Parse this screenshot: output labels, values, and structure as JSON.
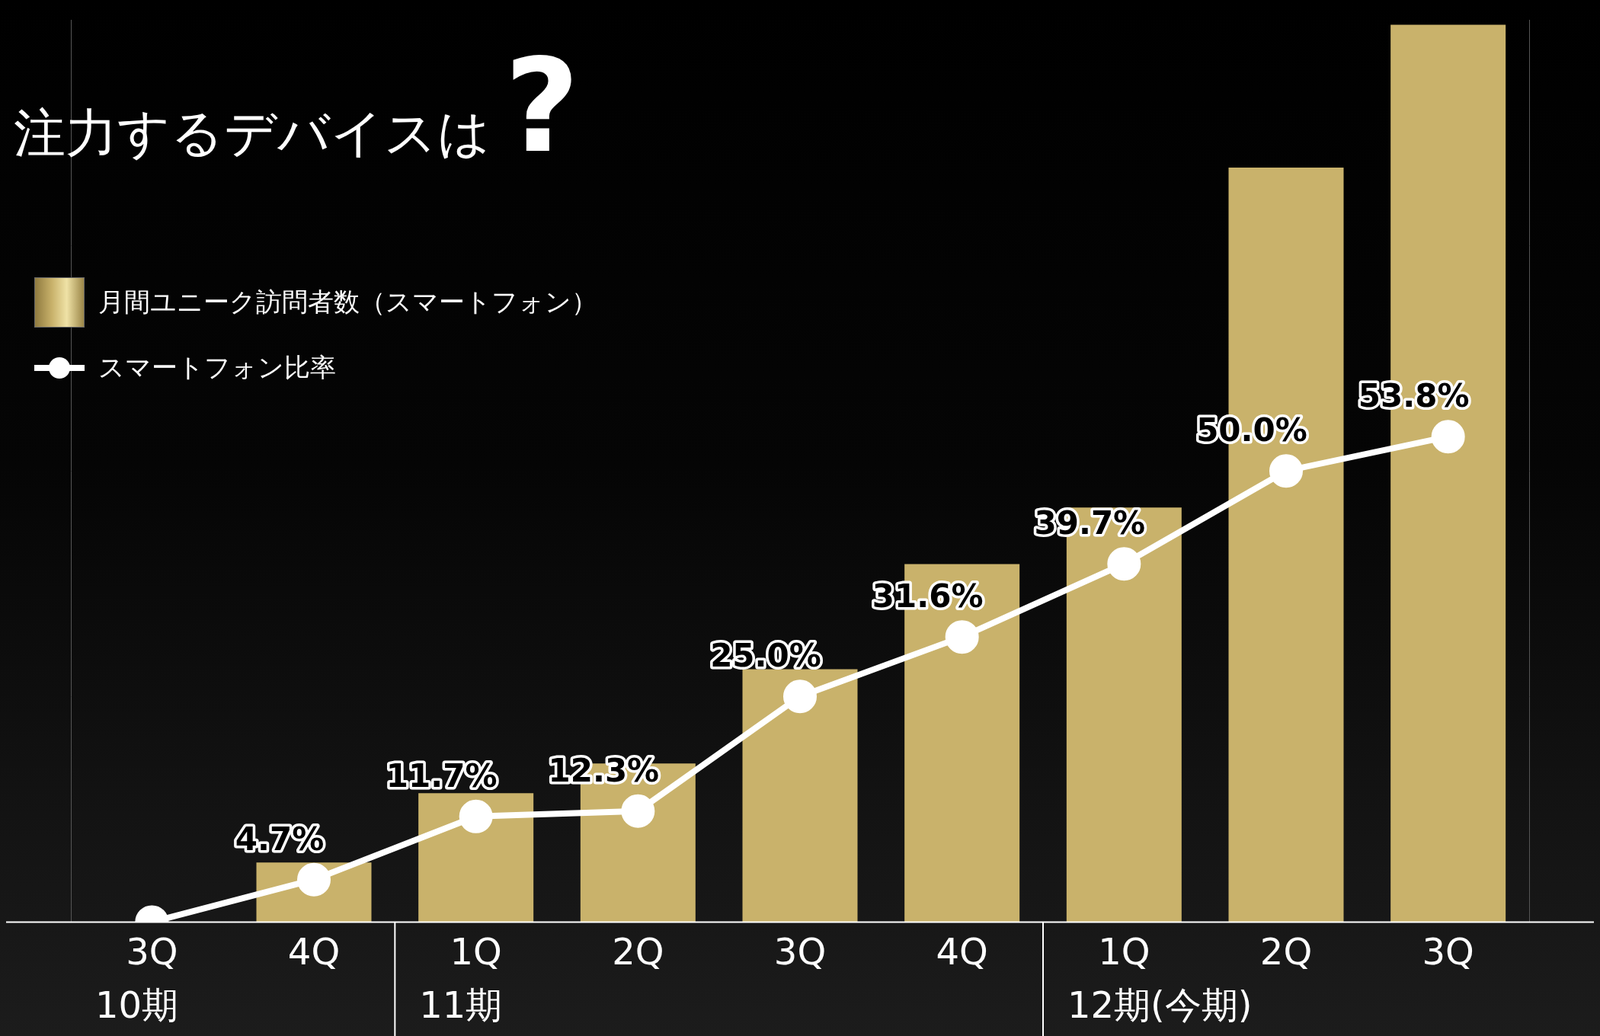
{
  "chart_data": {
    "type": "bar",
    "title": "注力するデバイスは?",
    "categories": [
      "3Q",
      "4Q",
      "1Q",
      "2Q",
      "3Q",
      "4Q",
      "1Q",
      "2Q",
      "3Q"
    ],
    "groups": [
      "10期",
      "10期",
      "11期",
      "11期",
      "11期",
      "11期",
      "12期(今期)",
      "12期(今期)",
      "12期(今期)"
    ],
    "series": [
      {
        "name": "月間ユニーク訪問者数（スマートフォン）",
        "type": "bar",
        "color": "#c9b26b",
        "values": [
          null,
          60,
          130,
          160,
          255,
          361,
          418,
          761,
          905
        ]
      },
      {
        "name": "スマートフォン比率",
        "type": "line",
        "axis": "y2",
        "color": "#ffffff",
        "marker": "circle",
        "data_labels": true,
        "values": [
          0,
          4.7,
          11.7,
          12.3,
          25.0,
          31.6,
          39.7,
          50.0,
          53.8
        ],
        "value_labels": [
          null,
          "4.7%",
          "11.7%",
          "12.3%",
          "25.0%",
          "31.6%",
          "39.7%",
          "50.0%",
          "53.8%"
        ]
      }
    ],
    "ylim": [
      0,
      910
    ],
    "yticks": [],
    "y2lim": [
      0,
      100
    ],
    "y2ticks": [],
    "grid": false,
    "legend": "top-left",
    "tick_labels": "x"
  }
}
